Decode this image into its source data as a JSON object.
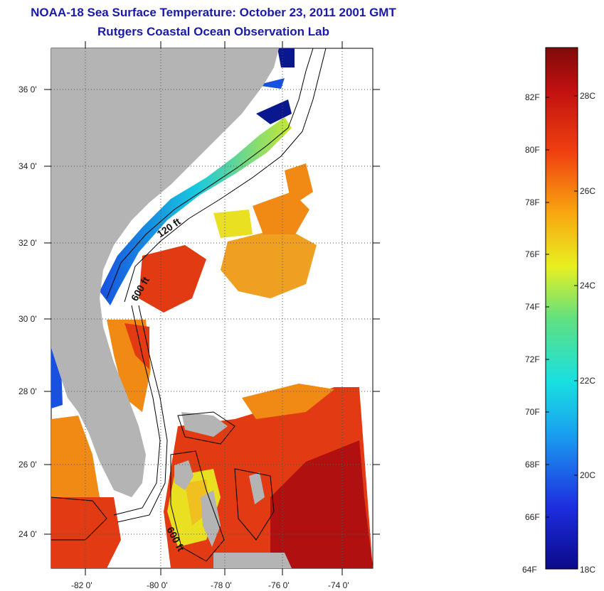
{
  "title": {
    "line1": "NOAA-18 Sea Surface Temperature:  October 23, 2011 2001 GMT",
    "line2": "Rutgers Coastal Ocean Observation Lab"
  },
  "map": {
    "lat_labels": [
      "36 0'",
      "34 0'",
      "32 0'",
      "30 0'",
      "28 0'",
      "26 0'",
      "24 0'"
    ],
    "lon_labels": [
      "-82 0'",
      "-80 0'",
      "-78 0'",
      "-76 0'",
      "-74 0'"
    ],
    "contour_labels": [
      "120 ft",
      "600 ft",
      "600 ft"
    ],
    "colors": {
      "land": "#b4b4b4",
      "water_warm": "#e23a12",
      "water_hot": "#b01010",
      "water_orange": "#f08a14",
      "water_yellow": "#e8e020",
      "water_green": "#70d040",
      "water_cyan": "#18c8e0",
      "water_blue": "#1850e0",
      "water_deep": "#0a1890"
    }
  },
  "colorbar": {
    "f_labels": [
      "82F",
      "80F",
      "78F",
      "76F",
      "74F",
      "72F",
      "70F",
      "68F",
      "66F",
      "64F"
    ],
    "c_labels": [
      "28C",
      "26C",
      "24C",
      "22C",
      "20C",
      "18C"
    ]
  }
}
